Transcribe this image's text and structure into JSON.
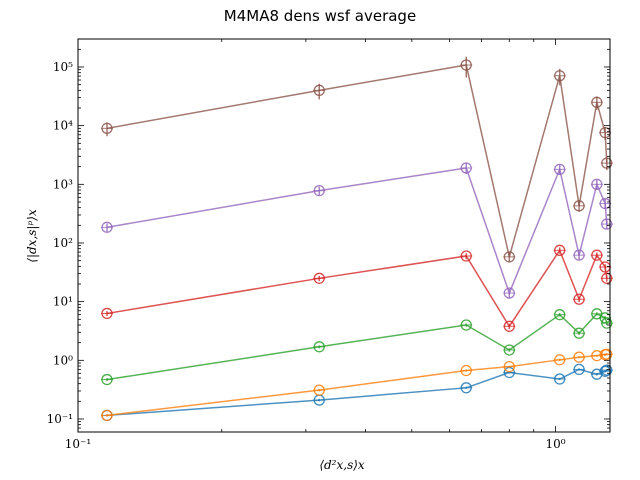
{
  "chart_data": {
    "type": "line",
    "title": "M4MA8 dens wsf average",
    "xlabel": "⟨d²x,s⟩x",
    "ylabel": "⟨|dx,s|ᵖ⟩x",
    "xscale": "log",
    "yscale": "log",
    "xlim": [
      0.1,
      1.3
    ],
    "ylim": [
      0.06,
      300000
    ],
    "x_ticks": [
      {
        "value": 0.1,
        "label": "10⁻¹"
      },
      {
        "value": 1,
        "label": "10⁰"
      }
    ],
    "y_ticks": [
      {
        "value": 0.1,
        "label": "10⁻¹"
      },
      {
        "value": 1,
        "label": "10⁰"
      },
      {
        "value": 10,
        "label": "10¹"
      },
      {
        "value": 100,
        "label": "10²"
      },
      {
        "value": 1000,
        "label": "10³"
      },
      {
        "value": 10000,
        "label": "10⁴"
      },
      {
        "value": 100000,
        "label": "10⁵"
      }
    ],
    "grid": false,
    "marker": "circle-with-errorbars",
    "series": [
      {
        "color": "#1f77b4",
        "x": [
          0.115,
          0.32,
          0.65,
          0.8,
          1.02,
          1.12,
          1.22,
          1.27,
          1.28
        ],
        "y": [
          0.115,
          0.21,
          0.34,
          0.62,
          0.48,
          0.7,
          0.58,
          0.65,
          0.68
        ],
        "yerr": [
          0.005,
          0.01,
          0.015,
          0.02,
          0.02,
          0.03,
          0.03,
          0.03,
          0.03
        ]
      },
      {
        "color": "#ff7f0e",
        "x": [
          0.115,
          0.32,
          0.65,
          0.8,
          1.02,
          1.12,
          1.22,
          1.27,
          1.28
        ],
        "y": [
          0.115,
          0.31,
          0.67,
          0.78,
          1.02,
          1.13,
          1.2,
          1.25,
          1.27
        ],
        "yerr": [
          0.005,
          0.015,
          0.03,
          0.03,
          0.05,
          0.05,
          0.05,
          0.06,
          0.06
        ]
      },
      {
        "color": "#2ca02c",
        "x": [
          0.115,
          0.32,
          0.65,
          0.8,
          1.02,
          1.12,
          1.22,
          1.27,
          1.28
        ],
        "y": [
          0.47,
          1.7,
          4.0,
          1.5,
          6.0,
          2.9,
          6.2,
          5.3,
          4.3
        ],
        "yerr": [
          0.03,
          0.1,
          0.25,
          0.1,
          0.4,
          0.2,
          0.4,
          0.35,
          0.3
        ]
      },
      {
        "color": "#d62728",
        "x": [
          0.115,
          0.32,
          0.65,
          0.8,
          1.02,
          1.12,
          1.22,
          1.27,
          1.28
        ],
        "y": [
          6.3,
          25,
          60,
          3.8,
          75,
          11,
          62,
          39,
          25
        ],
        "yerr": [
          0.6,
          2.5,
          7,
          0.4,
          9,
          1.2,
          7,
          4.5,
          3
        ]
      },
      {
        "color": "#9467bd",
        "x": [
          0.115,
          0.32,
          0.65,
          0.8,
          1.02,
          1.12,
          1.22,
          1.27,
          1.28
        ],
        "y": [
          185,
          780,
          1900,
          14,
          1800,
          62,
          1000,
          470,
          210
        ],
        "yerr": [
          30,
          130,
          400,
          2.5,
          350,
          10,
          190,
          90,
          40
        ]
      },
      {
        "color": "#8c564b",
        "x": [
          0.115,
          0.32,
          0.65,
          0.8,
          1.02,
          1.12,
          1.22,
          1.27,
          1.28
        ],
        "y": [
          9000,
          40000,
          108000,
          58,
          71000,
          430,
          25000,
          7600,
          2300
        ],
        "yerr": [
          2400,
          12000,
          42000,
          11,
          22000,
          90,
          6500,
          1900,
          550
        ]
      }
    ]
  }
}
